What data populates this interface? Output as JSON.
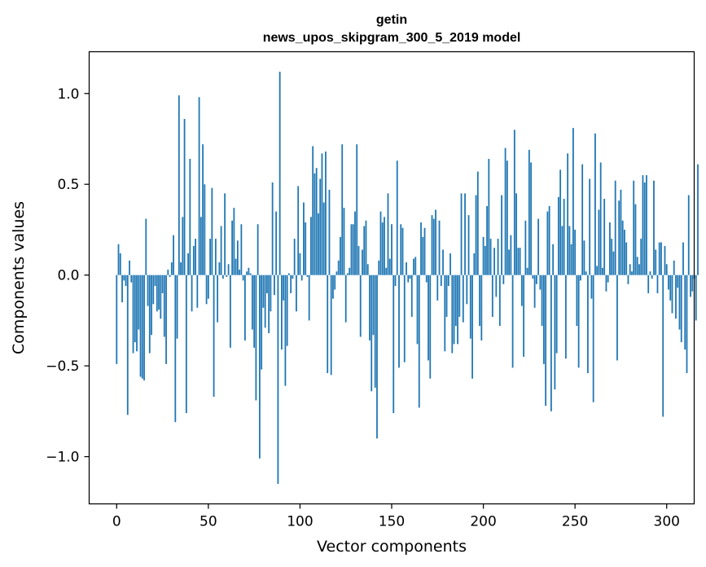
{
  "chart_data": {
    "type": "bar",
    "title": "getin",
    "subtitle": "news_upos_skipgram_300_5_2019 model",
    "xlabel": "Vector components",
    "ylabel": "Components values",
    "xlim": [
      -15,
      315
    ],
    "ylim": [
      -1.26,
      1.23
    ],
    "x_ticks": [
      {
        "value": 0,
        "label": "0"
      },
      {
        "value": 50,
        "label": "50"
      },
      {
        "value": 100,
        "label": "100"
      },
      {
        "value": 150,
        "label": "150"
      },
      {
        "value": 200,
        "label": "200"
      },
      {
        "value": 250,
        "label": "250"
      },
      {
        "value": 300,
        "label": "300"
      }
    ],
    "y_ticks": [
      {
        "value": -1.0,
        "label": "−1.0"
      },
      {
        "value": -0.5,
        "label": "−0.5"
      },
      {
        "value": 0.0,
        "label": "0.0"
      },
      {
        "value": 0.5,
        "label": "0.5"
      },
      {
        "value": 1.0,
        "label": "1.0"
      }
    ],
    "grid": false,
    "bar_color": "#1f77b4",
    "values": [
      -0.49,
      0.17,
      0.12,
      -0.15,
      -0.03,
      -0.06,
      -0.77,
      0.08,
      -0.04,
      -0.43,
      -0.37,
      -0.42,
      -0.3,
      -0.56,
      -0.57,
      -0.58,
      0.31,
      -0.17,
      -0.43,
      -0.33,
      -0.16,
      -0.06,
      -0.2,
      -0.19,
      -0.24,
      -0.1,
      -0.34,
      -0.49,
      0.03,
      -0.01,
      0.07,
      0.22,
      -0.81,
      -0.35,
      0.99,
      0.07,
      0.32,
      0.86,
      -0.76,
      0.12,
      0.64,
      -0.2,
      0.16,
      0.2,
      -0.18,
      0.98,
      0.32,
      0.72,
      0.5,
      -0.16,
      -0.13,
      0.2,
      0.48,
      -0.67,
      0.2,
      -0.26,
      0.07,
      0.27,
      -0.02,
      0.45,
      -0.01,
      0.06,
      -0.4,
      0.3,
      0.37,
      0.09,
      0.19,
      0.03,
      0.28,
      -0.03,
      -0.36,
      0.02,
      0.04,
      0.01,
      -0.3,
      -0.4,
      -0.69,
      0.28,
      -1.01,
      -0.52,
      -0.18,
      -0.29,
      -0.1,
      -0.32,
      -0.2,
      0.51,
      -0.11,
      0.35,
      -1.15,
      1.12,
      -0.41,
      -0.14,
      -0.61,
      -0.39,
      0.01,
      -0.1,
      -0.02,
      0.2,
      -0.2,
      0.49,
      0.12,
      -0.03,
      0.4,
      0.29,
      -0.01,
      -0.25,
      0.32,
      0.71,
      0.56,
      0.59,
      0.34,
      0.53,
      0.67,
      0.4,
      0.68,
      -0.54,
      0.47,
      -0.55,
      -0.13,
      -0.08,
      0.02,
      0.08,
      0.21,
      0.72,
      0.37,
      -0.26,
      0.01,
      0.04,
      0.28,
      0.28,
      0.35,
      0.72,
      0.16,
      -0.34,
      0.14,
      0.27,
      0.3,
      0.06,
      -0.36,
      -0.64,
      -0.33,
      -0.62,
      -0.9,
      0.08,
      0.35,
      0.29,
      0.32,
      0.04,
      0.45,
      0.09,
      0.28,
      -0.76,
      -0.06,
      0.63,
      -0.51,
      0.28,
      0.26,
      -0.48,
      0.07,
      -0.04,
      -0.02,
      -0.23,
      0.09,
      0.1,
      -0.38,
      -0.73,
      0.29,
      0.21,
      0.26,
      -0.04,
      -0.47,
      -0.57,
      0.33,
      0.31,
      0.36,
      -0.14,
      0.3,
      -0.06,
      0.14,
      -0.42,
      -0.23,
      -0.06,
      0.12,
      -0.43,
      -0.38,
      -0.28,
      -0.38,
      -0.23,
      0.45,
      -0.26,
      0.45,
      -0.16,
      0.33,
      -0.35,
      -0.57,
      0.12,
      0.44,
      0.57,
      -0.28,
      -0.36,
      0.21,
      0.16,
      0.38,
      0.64,
      0.2,
      -0.23,
      0.15,
      -0.12,
      0.2,
      -0.28,
      0.44,
      -0.05,
      0.7,
      0.63,
      0.14,
      0.22,
      -0.51,
      0.8,
      0.45,
      0.15,
      0.15,
      -0.17,
      -0.45,
      0.3,
      0.04,
      0.69,
      0.62,
      -0.02,
      -0.18,
      -0.05,
      0.31,
      -0.08,
      -0.28,
      -0.49,
      -0.72,
      0.35,
      0.38,
      -0.75,
      0.17,
      -0.63,
      -0.43,
      0.43,
      0.58,
      0.27,
      0.42,
      -0.46,
      0.67,
      0.27,
      0.17,
      0.81,
      0.25,
      -0.28,
      -0.51,
      -0.03,
      0.61,
      0.19,
      0.02,
      -0.54,
      0.53,
      -0.13,
      -0.7,
      0.78,
      0.05,
      0.36,
      0.62,
      0.04,
      0.42,
      -0.09,
      -0.04,
      0.29,
      0.2,
      0.13,
      0.52,
      -0.47,
      0.41,
      0.47,
      0.3,
      0.25,
      0.18,
      -0.05,
      0.06,
      0.02,
      0.52,
      0.39,
      0.1,
      0.06,
      0.2,
      0.55,
      0.51,
      0.55,
      -0.1,
      0.02,
      -0.02,
      0.52,
      0.14,
      -0.1,
      0.18,
      0.18,
      -0.78,
      0.16,
      0.06,
      -0.08,
      -0.14,
      -0.21,
      0.08,
      -0.24,
      -0.07,
      -0.3,
      -0.37,
      0.18,
      -0.41,
      -0.54,
      0.44,
      -0.12,
      -0.09,
      -0.02,
      -0.25,
      0.61
    ]
  }
}
